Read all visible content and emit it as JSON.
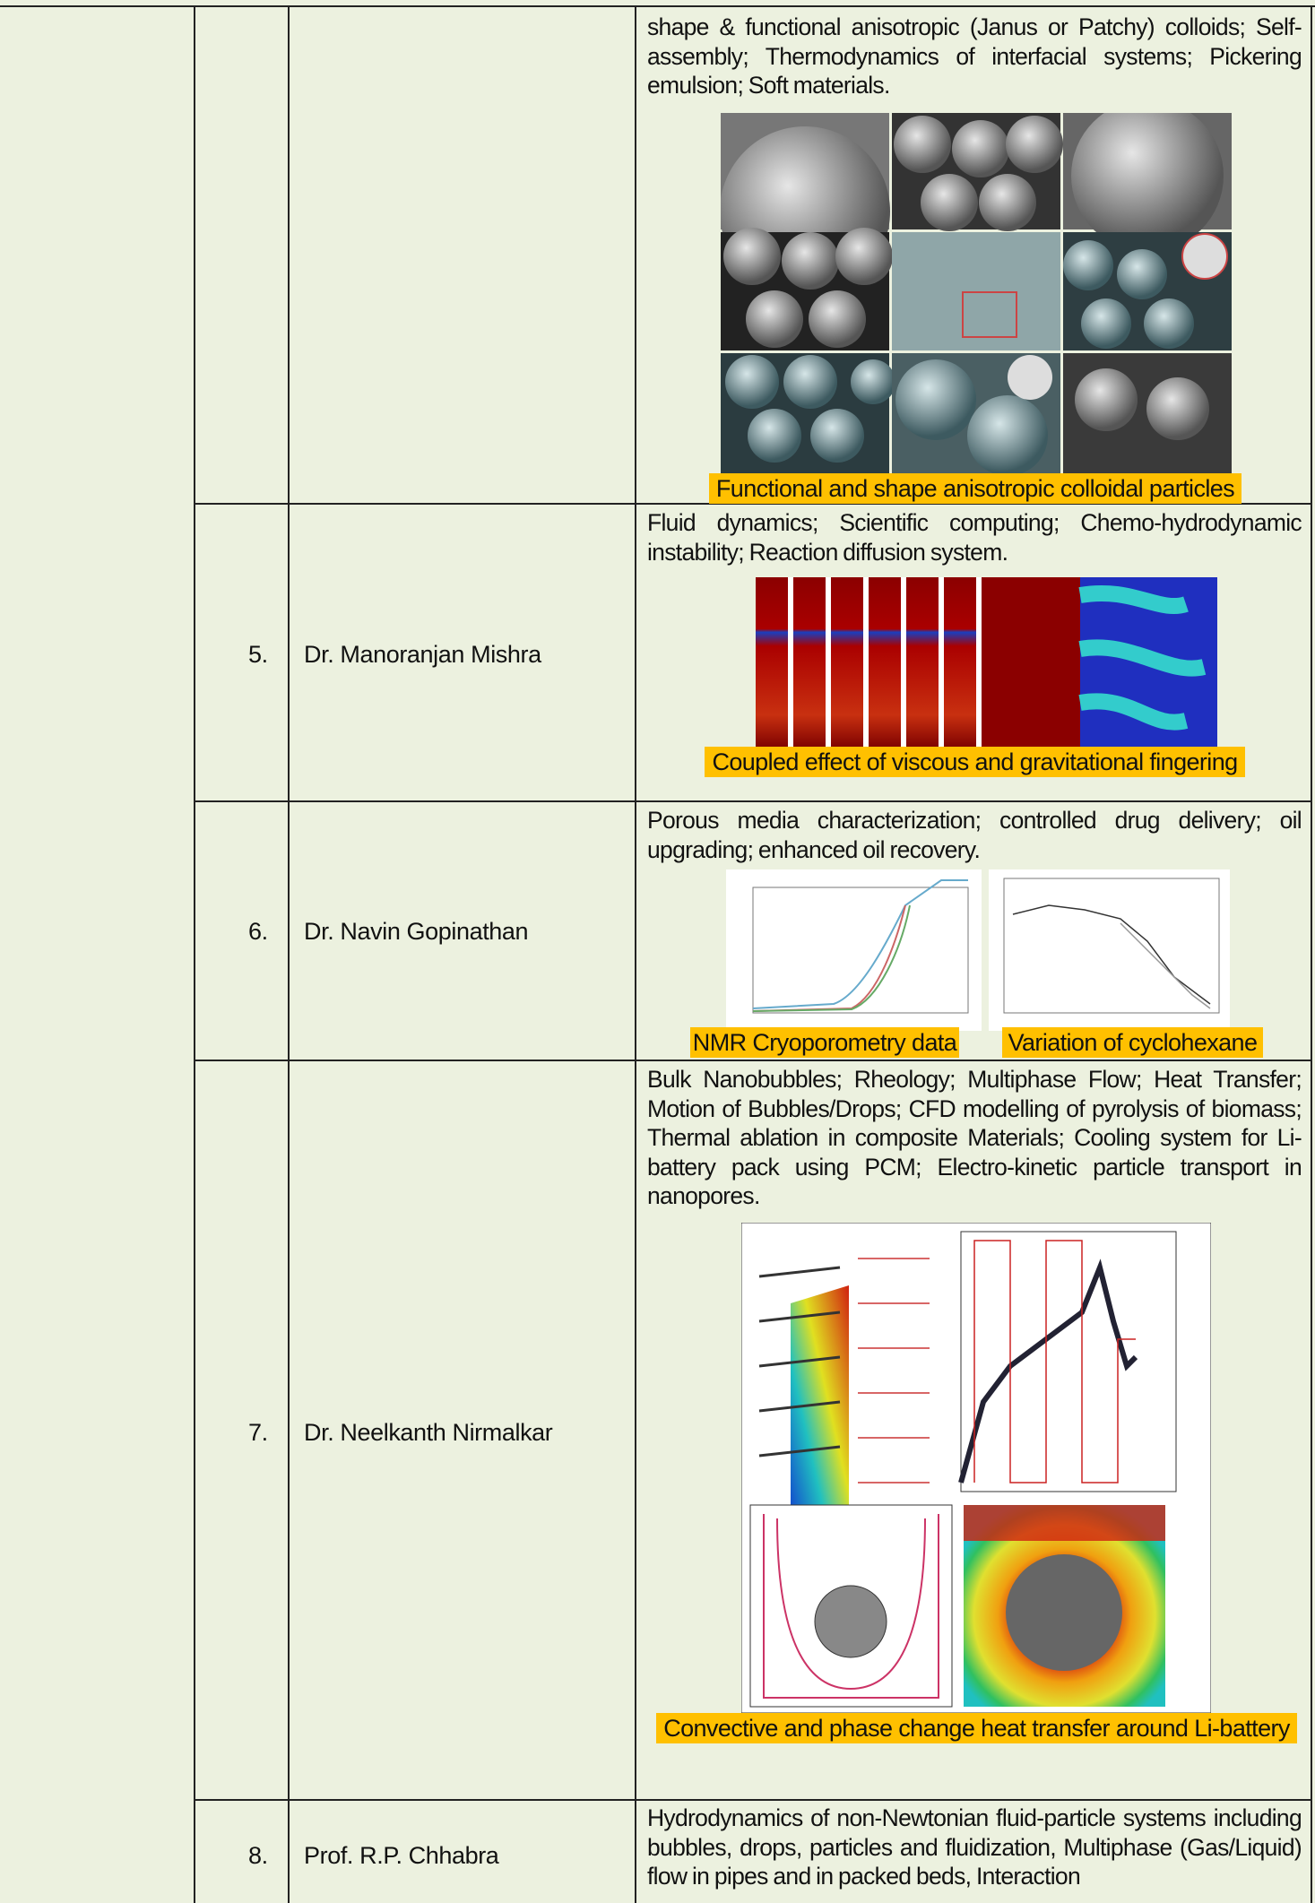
{
  "rows": [
    {
      "research": "shape & functional anisotropic (Janus or Patchy) colloids; Self-assembly; Thermodynamics of interfacial systems; Pickering emulsion; Soft materials.",
      "captions": [
        "Functional and shape anisotropic colloidal particles"
      ]
    },
    {
      "number": "5.",
      "name": "Dr. Manoranjan Mishra",
      "research": "Fluid dynamics; Scientific computing; Chemo-hydrodynamic instability; Reaction diffusion system.",
      "captions": [
        "Coupled effect of viscous and gravitational fingering"
      ]
    },
    {
      "number": "6.",
      "name": "Dr. Navin Gopinathan",
      "research": "Porous media characterization; controlled drug delivery; oil upgrading; enhanced oil recovery.",
      "captions": [
        "NMR Cryoporometry data",
        "Variation of cyclohexane"
      ]
    },
    {
      "number": "7.",
      "name": "Dr. Neelkanth Nirmalkar",
      "research": "Bulk Nanobubbles; Rheology; Multiphase Flow; Heat Transfer; Motion of Bubbles/Drops; CFD modelling of pyrolysis of biomass; Thermal ablation in composite Materials; Cooling system for Li-battery pack using PCM; Electro-kinetic particle transport in nanopores.",
      "captions": [
        "Convective and phase change heat transfer around Li-battery"
      ]
    },
    {
      "number": "8.",
      "name": "Prof. R.P. Chhabra",
      "research": "Hydrodynamics of non-Newtonian fluid-particle systems including bubbles, drops, particles and fluidization, Multiphase (Gas/Liquid) flow in pipes and in packed beds, Interaction"
    }
  ]
}
